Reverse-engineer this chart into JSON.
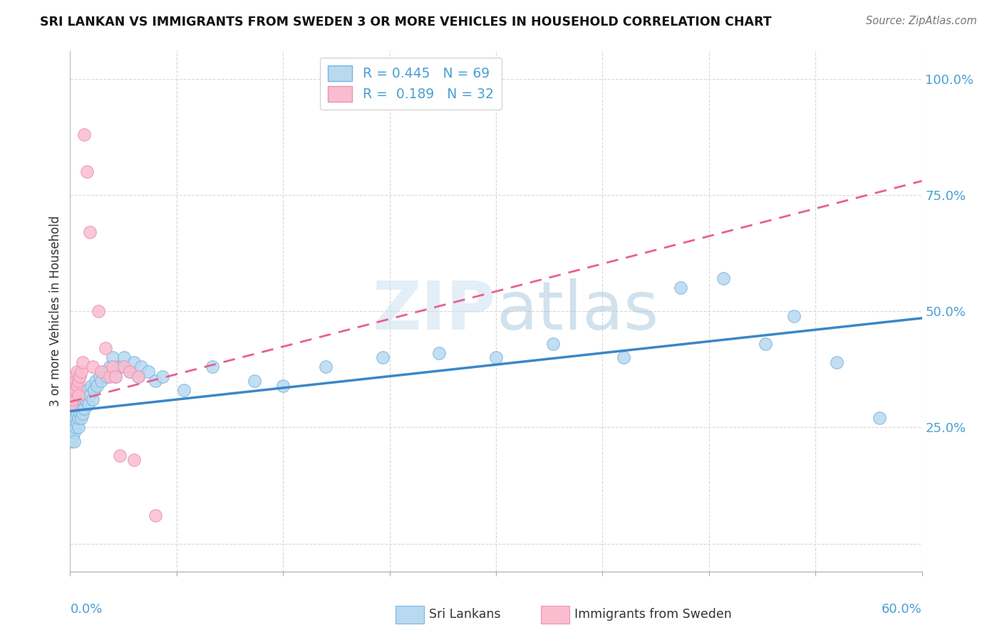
{
  "title": "SRI LANKAN VS IMMIGRANTS FROM SWEDEN 3 OR MORE VEHICLES IN HOUSEHOLD CORRELATION CHART",
  "source": "Source: ZipAtlas.com",
  "ylabel": "3 or more Vehicles in Household",
  "xmin": 0.0,
  "xmax": 0.6,
  "ymin": -0.06,
  "ymax": 1.06,
  "yticks": [
    0.0,
    0.25,
    0.5,
    0.75,
    1.0
  ],
  "ytick_labels": [
    "",
    "25.0%",
    "50.0%",
    "75.0%",
    "100.0%"
  ],
  "color_blue_fill": "#b8d9f0",
  "color_blue_edge": "#7ab5e0",
  "color_pink_fill": "#f9bdd0",
  "color_pink_edge": "#f090b0",
  "color_blue_line": "#3a87c8",
  "color_pink_line": "#e86090",
  "color_grid": "#d8d8d8",
  "watermark": "ZIPAtlas",
  "watermark_color": "#d0e8f8",
  "legend_label1": "R = 0.445   N = 69",
  "legend_label2": "R =  0.189   N = 32",
  "bottom_label1": "Sri Lankans",
  "bottom_label2": "Immigrants from Sweden",
  "sri_lankans_x": [
    0.001,
    0.001,
    0.002,
    0.002,
    0.002,
    0.003,
    0.003,
    0.003,
    0.003,
    0.004,
    0.004,
    0.004,
    0.005,
    0.005,
    0.005,
    0.006,
    0.006,
    0.006,
    0.007,
    0.007,
    0.007,
    0.008,
    0.008,
    0.009,
    0.009,
    0.01,
    0.01,
    0.011,
    0.012,
    0.013,
    0.014,
    0.015,
    0.016,
    0.017,
    0.018,
    0.019,
    0.021,
    0.022,
    0.024,
    0.026,
    0.028,
    0.03,
    0.032,
    0.034,
    0.036,
    0.038,
    0.042,
    0.045,
    0.048,
    0.05,
    0.055,
    0.06,
    0.065,
    0.08,
    0.1,
    0.13,
    0.15,
    0.18,
    0.22,
    0.26,
    0.3,
    0.34,
    0.39,
    0.43,
    0.46,
    0.49,
    0.51,
    0.54,
    0.57
  ],
  "sri_lankans_y": [
    0.22,
    0.24,
    0.23,
    0.25,
    0.27,
    0.24,
    0.26,
    0.28,
    0.22,
    0.25,
    0.27,
    0.29,
    0.26,
    0.28,
    0.3,
    0.25,
    0.27,
    0.29,
    0.28,
    0.3,
    0.32,
    0.27,
    0.29,
    0.28,
    0.31,
    0.29,
    0.32,
    0.31,
    0.33,
    0.3,
    0.32,
    0.34,
    0.31,
    0.33,
    0.35,
    0.34,
    0.36,
    0.35,
    0.37,
    0.36,
    0.38,
    0.4,
    0.36,
    0.38,
    0.38,
    0.4,
    0.37,
    0.39,
    0.36,
    0.38,
    0.37,
    0.35,
    0.36,
    0.33,
    0.38,
    0.35,
    0.34,
    0.38,
    0.4,
    0.41,
    0.4,
    0.43,
    0.4,
    0.55,
    0.57,
    0.43,
    0.49,
    0.39,
    0.27
  ],
  "immigrants_x": [
    0.001,
    0.001,
    0.002,
    0.002,
    0.002,
    0.003,
    0.003,
    0.004,
    0.004,
    0.005,
    0.005,
    0.006,
    0.006,
    0.007,
    0.008,
    0.009,
    0.01,
    0.012,
    0.014,
    0.016,
    0.02,
    0.022,
    0.025,
    0.028,
    0.03,
    0.032,
    0.035,
    0.038,
    0.042,
    0.045,
    0.048,
    0.06
  ],
  "immigrants_y": [
    0.3,
    0.32,
    0.31,
    0.33,
    0.35,
    0.34,
    0.36,
    0.33,
    0.35,
    0.34,
    0.37,
    0.35,
    0.32,
    0.36,
    0.37,
    0.39,
    0.88,
    0.8,
    0.67,
    0.38,
    0.5,
    0.37,
    0.42,
    0.36,
    0.38,
    0.36,
    0.19,
    0.38,
    0.37,
    0.18,
    0.36,
    0.06
  ],
  "blue_trend_x0": 0.0,
  "blue_trend_y0": 0.285,
  "blue_trend_x1": 0.6,
  "blue_trend_y1": 0.485,
  "pink_trend_x0": 0.0,
  "pink_trend_y0": 0.305,
  "pink_trend_x1": 0.6,
  "pink_trend_y1": 0.78
}
